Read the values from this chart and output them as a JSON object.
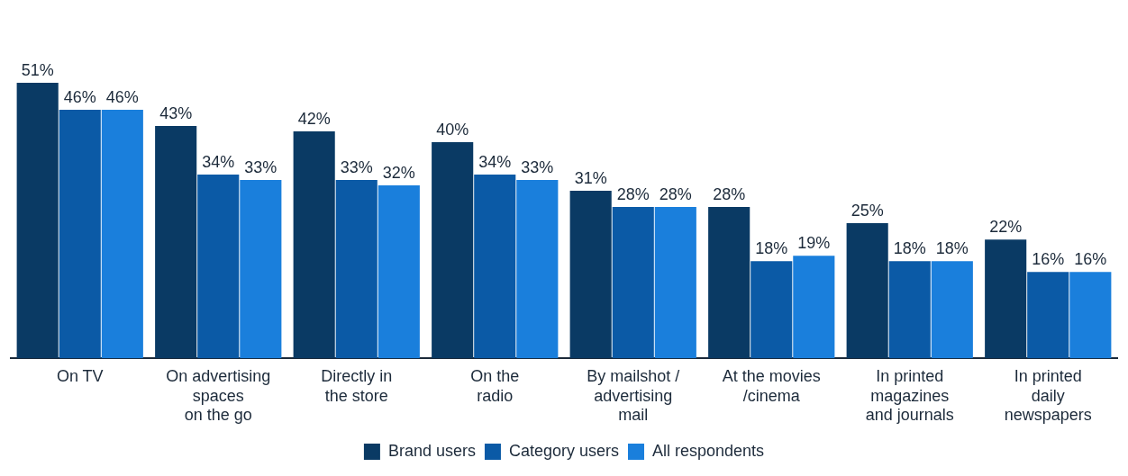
{
  "chart_data": {
    "type": "bar",
    "categories": [
      "On TV",
      "On advertising\nspaces\non the go",
      "Directly in\nthe store",
      "On the\nradio",
      "By mailshot /\nadvertising\nmail",
      "At the movies\n/cinema",
      "In printed\nmagazines\nand journals",
      "In printed\ndaily\nnewspapers"
    ],
    "series": [
      {
        "name": "Brand users",
        "color": "#0a3a64",
        "values": [
          51,
          43,
          42,
          40,
          31,
          28,
          25,
          22
        ],
        "value_labels": [
          "51%",
          "43%",
          "42%",
          "40%",
          "31%",
          "28%",
          "25%",
          "22%"
        ]
      },
      {
        "name": "Category users",
        "color": "#0b5aa6",
        "values": [
          46,
          34,
          33,
          34,
          28,
          18,
          18,
          16
        ],
        "value_labels": [
          "46%",
          "34%",
          "33%",
          "34%",
          "28%",
          "18%",
          "18%",
          "16%"
        ]
      },
      {
        "name": "All respondents",
        "color": "#1a7fdc",
        "values": [
          46,
          33,
          32,
          33,
          28,
          19,
          18,
          16
        ],
        "value_labels": [
          "46%",
          "33%",
          "32%",
          "33%",
          "28%",
          "19%",
          "18%",
          "16%"
        ]
      }
    ],
    "legend": "bottom",
    "grid": false
  }
}
